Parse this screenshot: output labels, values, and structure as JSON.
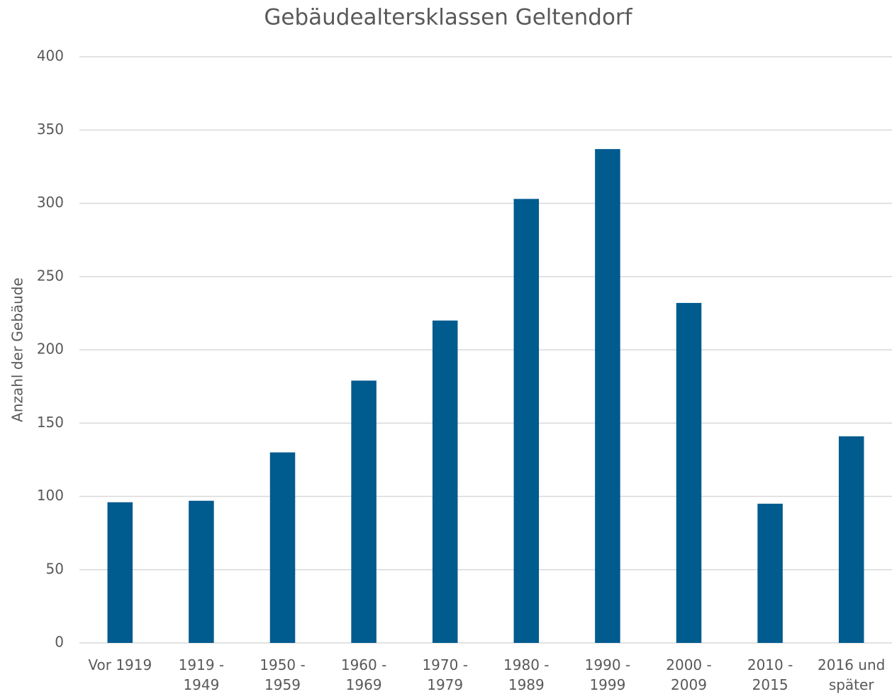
{
  "chart_data": {
    "type": "bar",
    "title": "Gebäudealtersklassen Geltendorf",
    "y_label": "Anzahl der Gebäude",
    "categories": [
      "Vor 1919",
      "1919 - 1949",
      "1950 - 1959",
      "1960 - 1969",
      "1970 - 1979",
      "1980 - 1989",
      "1990 - 1999",
      "2000 - 2009",
      "2010 - 2015",
      "2016 und später"
    ],
    "values": [
      96,
      97,
      130,
      179,
      220,
      303,
      337,
      232,
      95,
      141
    ],
    "color": "#005b8f",
    "ylim": [
      0,
      400
    ],
    "yticks": [
      0,
      50,
      100,
      150,
      200,
      250,
      300,
      350,
      400
    ],
    "grid": true
  }
}
